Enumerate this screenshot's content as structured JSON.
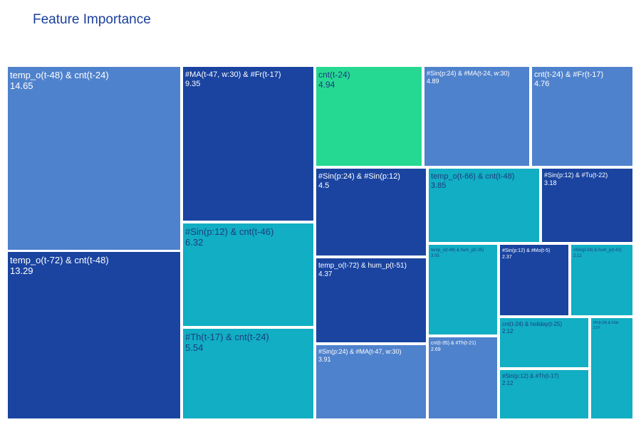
{
  "title": "Feature Importance",
  "colors": {
    "dark": "#1a44a0",
    "mid": "#4f82cc",
    "teal": "#12aec3",
    "green": "#26d993",
    "text_light": "#ffffff",
    "text_dark": "#1b3d80"
  },
  "chart_data": {
    "type": "treemap",
    "title": "Feature Importance",
    "items": [
      {
        "label": "temp_o(t-48) & cnt(t-24)",
        "value": 14.65,
        "color": "mid"
      },
      {
        "label": "temp_o(t-72) & cnt(t-48)",
        "value": 13.29,
        "color": "dark"
      },
      {
        "label": "#MA(t-47, w:30) & #Fr(t-17)",
        "value": 9.35,
        "color": "dark"
      },
      {
        "label": "#Sin(p:12) & cnt(t-46)",
        "value": 6.32,
        "color": "teal"
      },
      {
        "label": "#Th(t-17) & cnt(t-24)",
        "value": 5.54,
        "color": "teal"
      },
      {
        "label": "cnt(t-24)",
        "value": 4.94,
        "color": "green"
      },
      {
        "label": "#Sin(p:24) & #MA(t-24, w:30)",
        "value": 4.89,
        "color": "mid"
      },
      {
        "label": "cnt(t-24) & #Fr(t-17)",
        "value": 4.76,
        "color": "mid"
      },
      {
        "label": "#Sin(p:24) & #Sin(p:12)",
        "value": 4.5,
        "color": "dark"
      },
      {
        "label": "temp_o(t-72) & hum_p(t-51)",
        "value": 4.37,
        "color": "dark"
      },
      {
        "label": "#Sin(p:24) & #MA(t-47, w:30)",
        "value": 3.91,
        "color": "mid"
      },
      {
        "label": "temp_o(t-66) & cnt(t-48)",
        "value": 3.85,
        "color": "teal"
      },
      {
        "label": "#Sin(p:12) & #Tu(t-22)",
        "value": 3.18,
        "color": "dark"
      },
      {
        "label": "temp_o(t-48) & hum_p(t-25)",
        "value": 3.05,
        "color": "teal"
      },
      {
        "label": "cnt(t-35) & #Th(t-21)",
        "value": 2.69,
        "color": "mid"
      },
      {
        "label": "#Sin(p:12) & #Mo(t-5)",
        "value": 2.37,
        "color": "dark"
      },
      {
        "label": "#Sin(p:24) & hum_p(t-42)",
        "value": 2.12,
        "color": "teal"
      },
      {
        "label": "cnt(t-24) & holiday(t-25)",
        "value": 2.12,
        "color": "teal"
      },
      {
        "label": "#Sin(p:12) & #Th(t-17)",
        "value": 2.12,
        "color": "teal"
      },
      {
        "label": "#Fr(t-24) & #Sin",
        "value": 2.07,
        "color": "teal"
      }
    ]
  }
}
